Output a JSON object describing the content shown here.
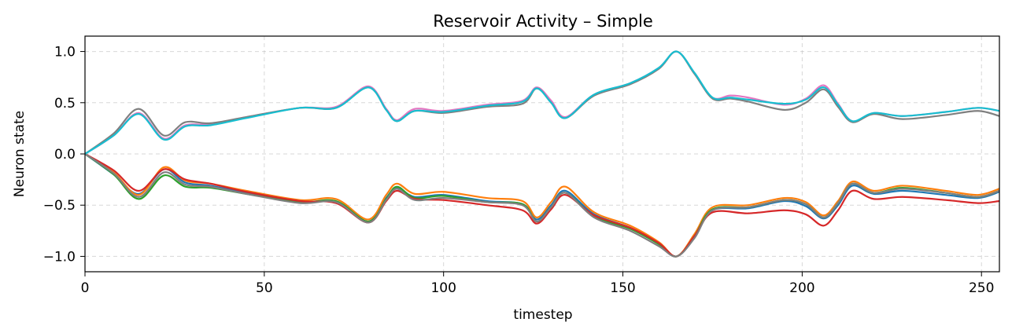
{
  "chart_data": {
    "type": "line",
    "title": "Reservoir Activity – Simple",
    "xlabel": "timestep",
    "ylabel": "Neuron state",
    "xlim": [
      0,
      255
    ],
    "ylim": [
      -1.15,
      1.15
    ],
    "xticks": [
      0,
      50,
      100,
      150,
      200,
      250
    ],
    "xtick_labels": [
      "0",
      "50",
      "100",
      "150",
      "200",
      "250"
    ],
    "yticks": [
      -1.0,
      -0.5,
      0.0,
      0.5,
      1.0
    ],
    "ytick_labels": [
      "−1.0",
      "−0.5",
      "0.0",
      "0.5",
      "1.0"
    ],
    "grid": true,
    "series": [
      {
        "color": "#1f77b4",
        "x": [
          0,
          8,
          15,
          22,
          28,
          35,
          45,
          60,
          70,
          79,
          84,
          87,
          92,
          100,
          112,
          122,
          126,
          130,
          134,
          142,
          152,
          160,
          165,
          170,
          175,
          185,
          195,
          201,
          206,
          210,
          214,
          220,
          228,
          240,
          249,
          255
        ],
        "y": [
          0,
          -0.2,
          -0.39,
          -0.15,
          -0.28,
          -0.31,
          -0.38,
          -0.47,
          -0.47,
          -0.66,
          -0.43,
          -0.33,
          -0.42,
          -0.4,
          -0.46,
          -0.49,
          -0.64,
          -0.5,
          -0.36,
          -0.59,
          -0.72,
          -0.87,
          -1.0,
          -0.8,
          -0.55,
          -0.53,
          -0.46,
          -0.51,
          -0.63,
          -0.5,
          -0.31,
          -0.39,
          -0.36,
          -0.4,
          -0.43,
          -0.37
        ]
      },
      {
        "color": "#ff7f0e",
        "x": [
          0,
          8,
          15,
          22,
          28,
          35,
          45,
          60,
          70,
          79,
          84,
          87,
          92,
          100,
          112,
          122,
          126,
          130,
          134,
          142,
          152,
          160,
          165,
          170,
          175,
          185,
          195,
          201,
          206,
          210,
          214,
          220,
          228,
          240,
          249,
          255
        ],
        "y": [
          0,
          -0.18,
          -0.4,
          -0.13,
          -0.26,
          -0.29,
          -0.36,
          -0.45,
          -0.44,
          -0.64,
          -0.4,
          -0.29,
          -0.39,
          -0.37,
          -0.43,
          -0.46,
          -0.62,
          -0.47,
          -0.32,
          -0.57,
          -0.7,
          -0.86,
          -1.0,
          -0.78,
          -0.52,
          -0.5,
          -0.43,
          -0.47,
          -0.6,
          -0.46,
          -0.27,
          -0.36,
          -0.31,
          -0.36,
          -0.4,
          -0.34
        ]
      },
      {
        "color": "#2ca02c",
        "x": [
          0,
          8,
          15,
          22,
          28,
          35,
          45,
          60,
          70,
          79,
          84,
          87,
          92,
          100,
          112,
          122,
          126,
          130,
          134,
          142,
          152,
          160,
          165,
          170,
          175,
          185,
          195,
          201,
          206,
          210,
          214,
          220,
          228,
          240,
          249,
          255
        ],
        "y": [
          0,
          -0.2,
          -0.44,
          -0.21,
          -0.32,
          -0.33,
          -0.39,
          -0.47,
          -0.46,
          -0.66,
          -0.44,
          -0.32,
          -0.43,
          -0.41,
          -0.47,
          -0.49,
          -0.66,
          -0.52,
          -0.38,
          -0.61,
          -0.73,
          -0.88,
          -1.0,
          -0.8,
          -0.54,
          -0.52,
          -0.45,
          -0.49,
          -0.62,
          -0.48,
          -0.29,
          -0.38,
          -0.33,
          -0.38,
          -0.42,
          -0.36
        ]
      },
      {
        "color": "#d62728",
        "x": [
          0,
          8,
          15,
          22,
          28,
          35,
          45,
          60,
          70,
          79,
          84,
          87,
          92,
          100,
          112,
          122,
          126,
          130,
          134,
          142,
          152,
          160,
          165,
          170,
          175,
          185,
          195,
          201,
          206,
          210,
          214,
          220,
          228,
          240,
          249,
          255
        ],
        "y": [
          0,
          -0.16,
          -0.36,
          -0.15,
          -0.25,
          -0.29,
          -0.37,
          -0.46,
          -0.48,
          -0.67,
          -0.46,
          -0.36,
          -0.44,
          -0.45,
          -0.5,
          -0.55,
          -0.68,
          -0.54,
          -0.4,
          -0.6,
          -0.72,
          -0.87,
          -1.0,
          -0.8,
          -0.57,
          -0.58,
          -0.55,
          -0.59,
          -0.7,
          -0.55,
          -0.36,
          -0.44,
          -0.42,
          -0.45,
          -0.48,
          -0.46
        ]
      },
      {
        "color": "#7f7f7f",
        "x": [
          0,
          8,
          15,
          22,
          28,
          35,
          45,
          60,
          70,
          79,
          84,
          87,
          92,
          100,
          112,
          122,
          126,
          130,
          134,
          142,
          152,
          160,
          165,
          170,
          175,
          185,
          195,
          201,
          206,
          210,
          214,
          220,
          228,
          240,
          249,
          255
        ],
        "y": [
          0,
          -0.19,
          -0.42,
          -0.18,
          -0.3,
          -0.32,
          -0.39,
          -0.48,
          -0.47,
          -0.67,
          -0.45,
          -0.34,
          -0.45,
          -0.43,
          -0.47,
          -0.5,
          -0.66,
          -0.52,
          -0.38,
          -0.62,
          -0.75,
          -0.9,
          -1.0,
          -0.82,
          -0.55,
          -0.52,
          -0.45,
          -0.49,
          -0.62,
          -0.48,
          -0.29,
          -0.38,
          -0.34,
          -0.38,
          -0.42,
          -0.36
        ]
      },
      {
        "color": "#e377c2",
        "x": [
          0,
          8,
          15,
          22,
          28,
          35,
          45,
          60,
          70,
          79,
          84,
          87,
          92,
          100,
          112,
          122,
          126,
          130,
          134,
          142,
          152,
          160,
          165,
          170,
          175,
          180,
          185,
          195,
          201,
          206,
          210,
          214,
          220,
          228,
          240,
          249,
          255
        ],
        "y": [
          0,
          0.18,
          0.4,
          0.15,
          0.28,
          0.29,
          0.36,
          0.45,
          0.46,
          0.66,
          0.44,
          0.33,
          0.44,
          0.42,
          0.48,
          0.52,
          0.65,
          0.52,
          0.36,
          0.58,
          0.69,
          0.84,
          1.0,
          0.79,
          0.55,
          0.57,
          0.55,
          0.48,
          0.54,
          0.67,
          0.49,
          0.32,
          0.4,
          0.37,
          0.41,
          0.45,
          0.42
        ]
      },
      {
        "color": "#7f7f7f",
        "x": [
          0,
          8,
          15,
          22,
          28,
          35,
          45,
          60,
          70,
          79,
          84,
          87,
          92,
          100,
          112,
          122,
          126,
          130,
          134,
          142,
          152,
          160,
          165,
          170,
          175,
          180,
          185,
          195,
          201,
          206,
          210,
          214,
          220,
          228,
          240,
          249,
          255
        ],
        "y": [
          0,
          0.2,
          0.44,
          0.18,
          0.31,
          0.3,
          0.36,
          0.45,
          0.45,
          0.65,
          0.43,
          0.32,
          0.42,
          0.4,
          0.46,
          0.49,
          0.64,
          0.5,
          0.35,
          0.57,
          0.68,
          0.83,
          1.0,
          0.78,
          0.54,
          0.54,
          0.51,
          0.43,
          0.5,
          0.63,
          0.46,
          0.31,
          0.39,
          0.34,
          0.38,
          0.42,
          0.37
        ]
      },
      {
        "color": "#17becf",
        "x": [
          0,
          8,
          15,
          22,
          28,
          35,
          45,
          60,
          70,
          79,
          84,
          87,
          92,
          100,
          112,
          122,
          126,
          130,
          134,
          142,
          152,
          160,
          165,
          170,
          175,
          180,
          185,
          195,
          201,
          206,
          210,
          214,
          220,
          228,
          240,
          249,
          255
        ],
        "y": [
          0,
          0.18,
          0.39,
          0.14,
          0.27,
          0.28,
          0.35,
          0.45,
          0.45,
          0.65,
          0.43,
          0.32,
          0.42,
          0.41,
          0.47,
          0.51,
          0.64,
          0.5,
          0.35,
          0.58,
          0.69,
          0.84,
          1.0,
          0.79,
          0.55,
          0.55,
          0.53,
          0.49,
          0.53,
          0.65,
          0.48,
          0.32,
          0.4,
          0.37,
          0.41,
          0.45,
          0.42
        ]
      }
    ]
  }
}
